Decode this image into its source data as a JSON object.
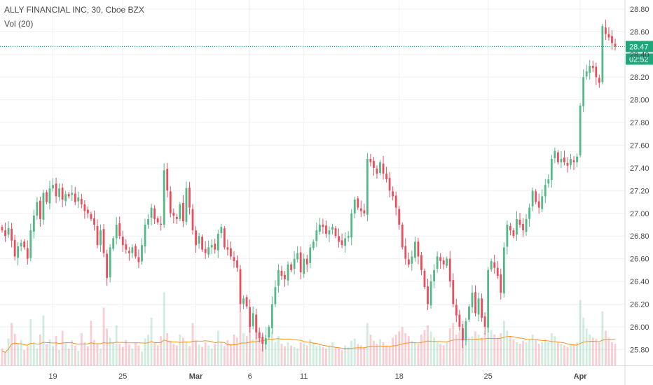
{
  "chart_data": {
    "type": "candlestick",
    "title": "ALLY FINANCIAL INC, 30, Cboe BZX",
    "volume_label": "Vol (20)",
    "last_price": "28.47",
    "countdown": "02:52",
    "ylim": [
      25.66,
      28.88
    ],
    "y_ticks": [
      "28.80",
      "28.60",
      "28.40",
      "28.20",
      "28.00",
      "27.80",
      "27.60",
      "27.40",
      "27.20",
      "27.00",
      "26.80",
      "26.60",
      "26.40",
      "26.20",
      "26.00",
      "25.80"
    ],
    "x_ticks": [
      {
        "label": "19",
        "bar": 16,
        "bold": false
      },
      {
        "label": "25",
        "bar": 38,
        "bold": false
      },
      {
        "label": "Mar",
        "bar": 61,
        "bold": true
      },
      {
        "label": "6",
        "bar": 78,
        "bold": false
      },
      {
        "label": "11",
        "bar": 95,
        "bold": false
      },
      {
        "label": "18",
        "bar": 125,
        "bold": false
      },
      {
        "label": "25",
        "bar": 153,
        "bold": false
      },
      {
        "label": "Apr",
        "bar": 182,
        "bold": true
      }
    ],
    "colors": {
      "up": "#53b987",
      "down": "#eb4d5c",
      "ma": "#f7931a",
      "grid": "#eef0f3",
      "price_line": "#1ea77a"
    },
    "closes": [
      26.85,
      26.8,
      26.87,
      26.76,
      26.62,
      26.71,
      26.74,
      26.7,
      26.6,
      26.85,
      26.98,
      27.1,
      26.95,
      27.18,
      27.1,
      27.22,
      27.25,
      27.15,
      27.22,
      27.12,
      27.17,
      27.15,
      27.18,
      27.1,
      27.14,
      27.08,
      27.02,
      27.0,
      26.95,
      26.9,
      26.72,
      26.85,
      26.65,
      26.43,
      26.7,
      26.78,
      26.9,
      26.8,
      26.72,
      26.68,
      26.65,
      26.7,
      26.62,
      26.57,
      26.72,
      26.9,
      26.95,
      27.05,
      26.95,
      26.92,
      26.9,
      27.38,
      27.2,
      27.0,
      26.98,
      26.95,
      27.08,
      26.93,
      27.22,
      27.05,
      26.85,
      26.72,
      26.8,
      26.68,
      26.65,
      26.7,
      26.72,
      26.68,
      26.82,
      26.88,
      26.7,
      26.68,
      26.62,
      26.58,
      26.52,
      26.2,
      26.25,
      26.18,
      26.0,
      26.12,
      25.95,
      25.9,
      25.85,
      25.9,
      26.0,
      26.2,
      26.35,
      26.5,
      26.45,
      26.42,
      26.55,
      26.5,
      26.6,
      26.65,
      26.48,
      26.6,
      26.55,
      26.7,
      26.75,
      26.85,
      26.9,
      26.88,
      26.82,
      26.85,
      26.88,
      26.8,
      26.75,
      26.72,
      26.78,
      26.8,
      27.0,
      27.12,
      27.05,
      27.02,
      27.0,
      27.48,
      27.45,
      27.4,
      27.35,
      27.45,
      27.35,
      27.3,
      27.2,
      27.15,
      27.05,
      26.9,
      26.7,
      26.6,
      26.55,
      26.62,
      26.75,
      26.62,
      26.5,
      26.35,
      26.2,
      26.4,
      26.5,
      26.62,
      26.58,
      26.55,
      26.6,
      26.4,
      26.2,
      26.1,
      26.0,
      25.88,
      26.05,
      26.18,
      26.3,
      26.12,
      26.25,
      26.08,
      26.0,
      26.5,
      26.58,
      26.52,
      26.45,
      26.3,
      26.7,
      26.9,
      26.85,
      26.8,
      26.95,
      26.9,
      26.85,
      26.95,
      27.05,
      27.2,
      27.1,
      27.05,
      27.15,
      27.25,
      27.3,
      27.48,
      27.55,
      27.45,
      27.48,
      27.45,
      27.42,
      27.48,
      27.45,
      27.5,
      27.95,
      28.2,
      28.25,
      28.3,
      28.28,
      28.2,
      28.15,
      28.65,
      28.58,
      28.55,
      28.5,
      28.47
    ],
    "volumes": [
      0.22,
      0.18,
      0.35,
      0.55,
      0.41,
      0.28,
      0.33,
      0.2,
      0.25,
      0.6,
      0.3,
      0.22,
      0.4,
      0.65,
      0.28,
      0.34,
      0.25,
      0.38,
      0.2,
      0.45,
      0.3,
      0.22,
      0.33,
      0.26,
      0.19,
      0.42,
      0.3,
      0.25,
      0.58,
      0.33,
      0.28,
      0.22,
      0.75,
      0.48,
      0.36,
      0.3,
      0.52,
      0.28,
      0.24,
      0.33,
      0.27,
      0.22,
      0.3,
      0.26,
      0.18,
      0.35,
      0.4,
      0.62,
      0.3,
      0.26,
      0.38,
      0.95,
      0.42,
      0.32,
      0.28,
      0.26,
      0.4,
      0.36,
      0.3,
      0.25,
      0.55,
      0.32,
      0.27,
      0.24,
      0.3,
      0.26,
      0.22,
      0.28,
      0.45,
      0.3,
      0.25,
      0.33,
      0.28,
      0.4,
      0.36,
      0.7,
      0.42,
      0.38,
      0.55,
      0.34,
      0.62,
      0.45,
      0.4,
      0.5,
      0.35,
      0.44,
      0.3,
      0.38,
      0.28,
      0.25,
      0.3,
      0.26,
      0.24,
      0.22,
      0.3,
      0.28,
      0.26,
      0.34,
      0.3,
      0.25,
      0.28,
      0.24,
      0.22,
      0.26,
      0.3,
      0.24,
      0.22,
      0.2,
      0.26,
      0.24,
      0.32,
      0.35,
      0.28,
      0.26,
      0.24,
      0.55,
      0.4,
      0.32,
      0.28,
      0.34,
      0.3,
      0.26,
      0.24,
      0.36,
      0.4,
      0.44,
      0.5,
      0.42,
      0.38,
      0.32,
      0.3,
      0.28,
      0.4,
      0.46,
      0.52,
      0.44,
      0.36,
      0.3,
      0.28,
      0.26,
      0.3,
      0.48,
      0.55,
      0.4,
      0.44,
      0.58,
      0.42,
      0.36,
      0.38,
      0.44,
      0.4,
      0.36,
      0.42,
      0.6,
      0.46,
      0.4,
      0.36,
      0.42,
      0.58,
      0.45,
      0.38,
      0.34,
      0.3,
      0.28,
      0.32,
      0.3,
      0.34,
      0.4,
      0.33,
      0.28,
      0.3,
      0.34,
      0.3,
      0.42,
      0.38,
      0.3,
      0.28,
      0.26,
      0.24,
      0.28,
      0.26,
      0.3,
      0.85,
      0.62,
      0.48,
      0.4,
      0.36,
      0.34,
      0.3,
      0.7,
      0.45,
      0.36,
      0.3,
      0.28
    ]
  }
}
